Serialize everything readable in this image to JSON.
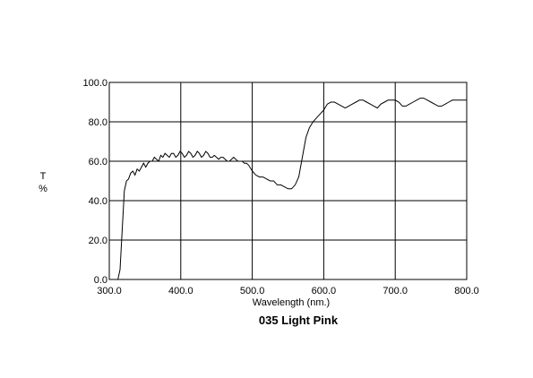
{
  "chart_data": {
    "type": "line",
    "title": "035 Light Pink",
    "xlabel": "Wavelength (nm.)",
    "ylabel_top": "T",
    "ylabel_bottom": "%",
    "xlim": [
      300,
      800
    ],
    "ylim": [
      0,
      100
    ],
    "xticks": [
      300,
      400,
      500,
      600,
      700,
      800
    ],
    "xtick_labels": [
      "300.0",
      "400.0",
      "500.0",
      "600.0",
      "700.0",
      "800.0"
    ],
    "yticks": [
      0,
      20,
      40,
      60,
      80,
      100
    ],
    "ytick_labels": [
      "0.0",
      "20.0",
      "40.0",
      "60.0",
      "80.0",
      "100.0"
    ],
    "grid": true,
    "line_color": "#000000",
    "series": [
      {
        "x": [
          312,
          315,
          318,
          321,
          324,
          327,
          330,
          333,
          336,
          339,
          342,
          345,
          348,
          351,
          354,
          357,
          360,
          363,
          366,
          369,
          372,
          375,
          378,
          381,
          384,
          387,
          390,
          393,
          396,
          399,
          402,
          405,
          408,
          411,
          414,
          417,
          420,
          423,
          426,
          429,
          432,
          435,
          438,
          441,
          444,
          447,
          450,
          453,
          456,
          459,
          462,
          465,
          468,
          471,
          474,
          477,
          480,
          483,
          486,
          489,
          492,
          495,
          500,
          505,
          510,
          515,
          520,
          525,
          530,
          535,
          540,
          545,
          550,
          555,
          560,
          565,
          570,
          575,
          580,
          585,
          590,
          595,
          600,
          605,
          610,
          615,
          620,
          625,
          630,
          635,
          640,
          645,
          650,
          655,
          660,
          665,
          670,
          675,
          680,
          685,
          690,
          695,
          700,
          705,
          710,
          715,
          720,
          725,
          730,
          735,
          740,
          745,
          750,
          755,
          760,
          765,
          770,
          775,
          780,
          785,
          790,
          795,
          800
        ],
        "values": [
          0,
          5,
          25,
          45,
          50,
          51,
          54,
          55,
          53,
          56,
          55,
          57,
          59,
          57,
          59,
          60,
          60,
          62,
          61,
          60,
          63,
          62,
          64,
          63,
          62,
          64,
          64,
          62,
          63,
          65,
          64,
          62,
          63,
          65,
          64,
          62,
          63,
          65,
          64,
          62,
          63,
          65,
          64,
          62,
          62,
          63,
          62,
          61,
          62,
          62,
          61,
          60,
          60,
          61,
          62,
          61,
          60,
          60,
          60,
          59,
          59,
          58,
          55,
          53,
          52,
          52,
          51,
          50,
          50,
          48,
          48,
          47,
          46,
          46,
          48,
          52,
          62,
          72,
          77,
          80,
          82,
          84,
          86,
          89,
          90,
          90,
          89,
          88,
          87,
          88,
          89,
          90,
          91,
          91,
          90,
          89,
          88,
          87,
          89,
          90,
          91,
          91,
          91,
          90,
          88,
          88,
          89,
          90,
          91,
          92,
          92,
          91,
          90,
          89,
          88,
          88,
          89,
          90,
          91,
          91,
          91,
          91,
          91
        ]
      }
    ]
  }
}
